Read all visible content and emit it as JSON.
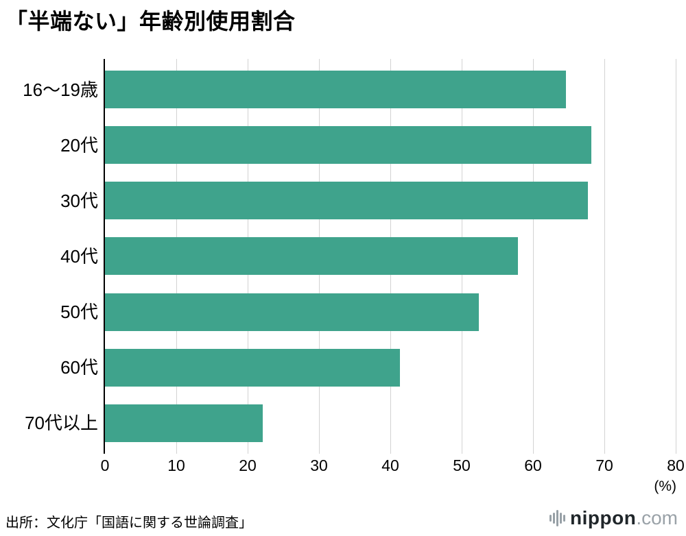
{
  "source": "出所：文化庁「国語に関する世論調査」",
  "logo": {
    "name": "nippon",
    "tld": ".com"
  },
  "chart_data": {
    "type": "bar",
    "orientation": "horizontal",
    "title": "「半端ない」年齢別使用割合",
    "categories": [
      "16〜19歳",
      "20代",
      "30代",
      "40代",
      "50代",
      "60代",
      "70代以上"
    ],
    "values": [
      64.6,
      68.2,
      67.7,
      57.9,
      52.4,
      41.3,
      22.1
    ],
    "xlabel": "(%)",
    "ylabel": "",
    "xlim": [
      0,
      80
    ],
    "xticks": [
      0,
      10,
      20,
      30,
      40,
      50,
      60,
      70,
      80
    ],
    "grid": true,
    "legend": false,
    "bar_color": "#3fa38c",
    "gridline_color": "#d2d2d2",
    "axis_color": "#000000"
  }
}
